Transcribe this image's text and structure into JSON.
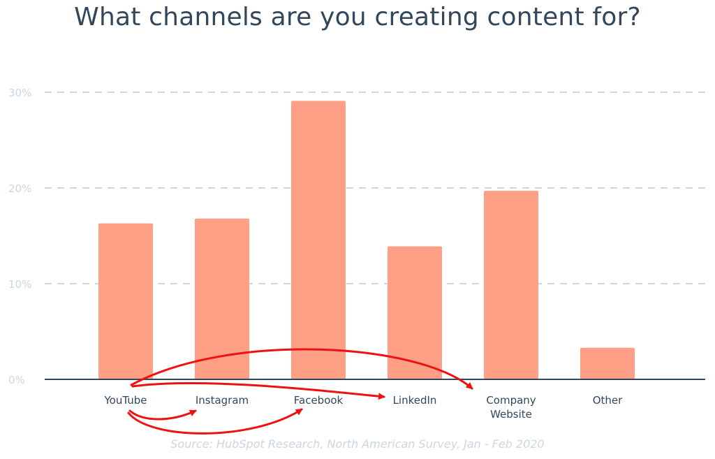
{
  "title": "What channels are you creating content for?",
  "source": "Source: HubSpot Research, North American Survey, Jan - Feb 2020",
  "colors": {
    "bar": "#ff9f86",
    "grid": "#cbd6e2",
    "axis": "#33475b",
    "tick_label": "#cbd6e2",
    "category_label": "#33475b",
    "annotation_arrow": "#ee1111"
  },
  "chart_data": {
    "type": "bar",
    "title": "What channels are you creating content for?",
    "xlabel": "",
    "ylabel": "",
    "categories": [
      "YouTube",
      "Instagram",
      "Facebook",
      "LinkedIn",
      "Company Website",
      "Other"
    ],
    "category_lines": [
      [
        "YouTube"
      ],
      [
        "Instagram"
      ],
      [
        "Facebook"
      ],
      [
        "LinkedIn"
      ],
      [
        "Company",
        "Website"
      ],
      [
        "Other"
      ]
    ],
    "values": [
      16.3,
      16.8,
      29.1,
      13.9,
      19.7,
      3.3
    ],
    "unit": "%",
    "yticks": [
      0,
      10,
      20,
      30
    ],
    "ytick_labels": [
      "0%",
      "10%",
      "20%",
      "30%"
    ],
    "ylim": [
      0,
      30
    ],
    "grid": true,
    "legend": "none",
    "annotations": [
      {
        "type": "arrow",
        "from": "YouTube",
        "to": "Instagram"
      },
      {
        "type": "arrow",
        "from": "YouTube",
        "to": "Facebook"
      },
      {
        "type": "arrow",
        "from": "YouTube",
        "to": "LinkedIn"
      },
      {
        "type": "arrow",
        "from": "YouTube",
        "to": "Company Website"
      }
    ]
  }
}
